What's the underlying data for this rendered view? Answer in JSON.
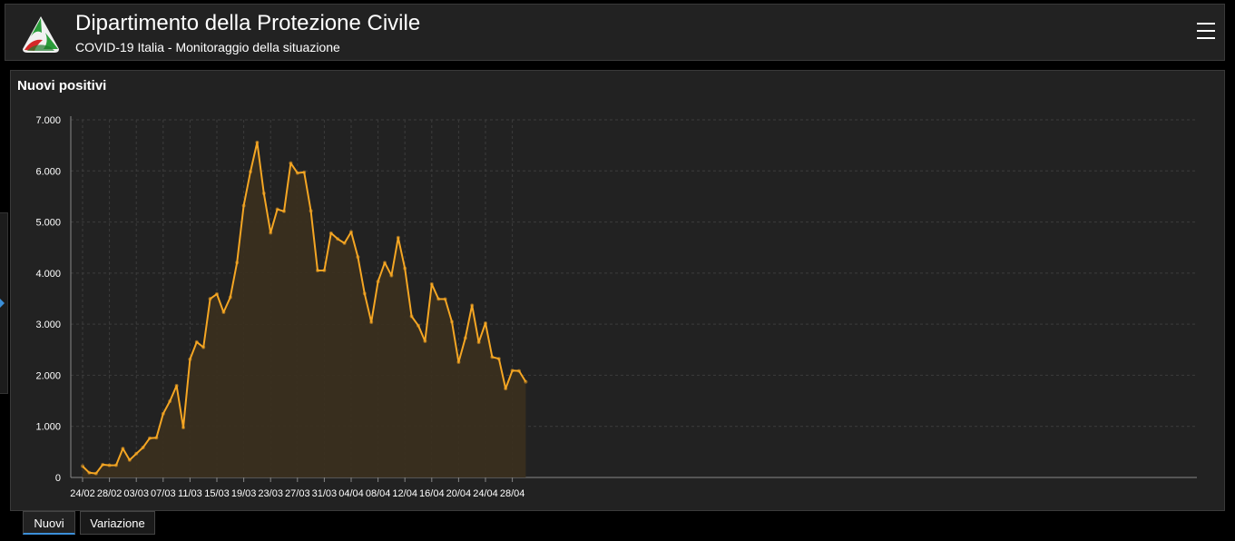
{
  "header": {
    "title": "Dipartimento della Protezione Civile",
    "subtitle": "COVID-19 Italia - Monitoraggio della situazione"
  },
  "panel": {
    "title": "Nuovi positivi"
  },
  "tabs": [
    {
      "label": "Nuovi",
      "active": true
    },
    {
      "label": "Variazione",
      "active": false
    }
  ],
  "colors": {
    "line": "#f5a623",
    "fill": "#3a2f1f",
    "grid": "#3c3c3c",
    "accent": "#3b8fd9"
  },
  "chart_data": {
    "type": "area",
    "ylim": [
      0,
      7000
    ],
    "yticks": [
      0,
      1000,
      2000,
      3000,
      4000,
      5000,
      6000,
      7000
    ],
    "ytick_labels": [
      "0",
      "1.000",
      "2.000",
      "3.000",
      "4.000",
      "5.000",
      "6.000",
      "7.000"
    ],
    "xtick_labels": [
      "24/02",
      "28/02",
      "03/03",
      "07/03",
      "11/03",
      "15/03",
      "19/03",
      "23/03",
      "27/03",
      "31/03",
      "04/04",
      "08/04",
      "12/04",
      "16/04",
      "20/04",
      "24/04",
      "28/04"
    ],
    "xtick_every": 4,
    "grid": true,
    "x": [
      "24/02",
      "25/02",
      "26/02",
      "27/02",
      "28/02",
      "29/02",
      "01/03",
      "02/03",
      "03/03",
      "04/03",
      "05/03",
      "06/03",
      "07/03",
      "08/03",
      "09/03",
      "10/03",
      "11/03",
      "12/03",
      "13/03",
      "14/03",
      "15/03",
      "16/03",
      "17/03",
      "18/03",
      "19/03",
      "20/03",
      "21/03",
      "22/03",
      "23/03",
      "24/03",
      "25/03",
      "26/03",
      "27/03",
      "28/03",
      "29/03",
      "30/03",
      "31/03",
      "01/04",
      "02/04",
      "03/04",
      "04/04",
      "05/04",
      "06/04",
      "07/04",
      "08/04",
      "09/04",
      "10/04",
      "11/04",
      "12/04",
      "13/04",
      "14/04",
      "15/04",
      "16/04",
      "17/04",
      "18/04",
      "19/04",
      "20/04",
      "21/04",
      "22/04",
      "23/04",
      "24/04",
      "25/04",
      "26/04",
      "27/04",
      "28/04",
      "29/04",
      "30/04"
    ],
    "values": [
      221,
      93,
      78,
      250,
      238,
      240,
      566,
      342,
      466,
      587,
      769,
      778,
      1247,
      1492,
      1797,
      977,
      2313,
      2651,
      2547,
      3497,
      3590,
      3233,
      3526,
      4207,
      5322,
      5986,
      6557,
      5560,
      4789,
      5249,
      5210,
      6153,
      5959,
      5974,
      5217,
      4050,
      4053,
      4782,
      4668,
      4585,
      4805,
      4316,
      3599,
      3039,
      3836,
      4204,
      3951,
      4694,
      4092,
      3153,
      2972,
      2667,
      3786,
      3493,
      3491,
      3047,
      2256,
      2729,
      3370,
      2646,
      3021,
      2357,
      2324,
      1739,
      2091,
      2086,
      1872
    ]
  }
}
